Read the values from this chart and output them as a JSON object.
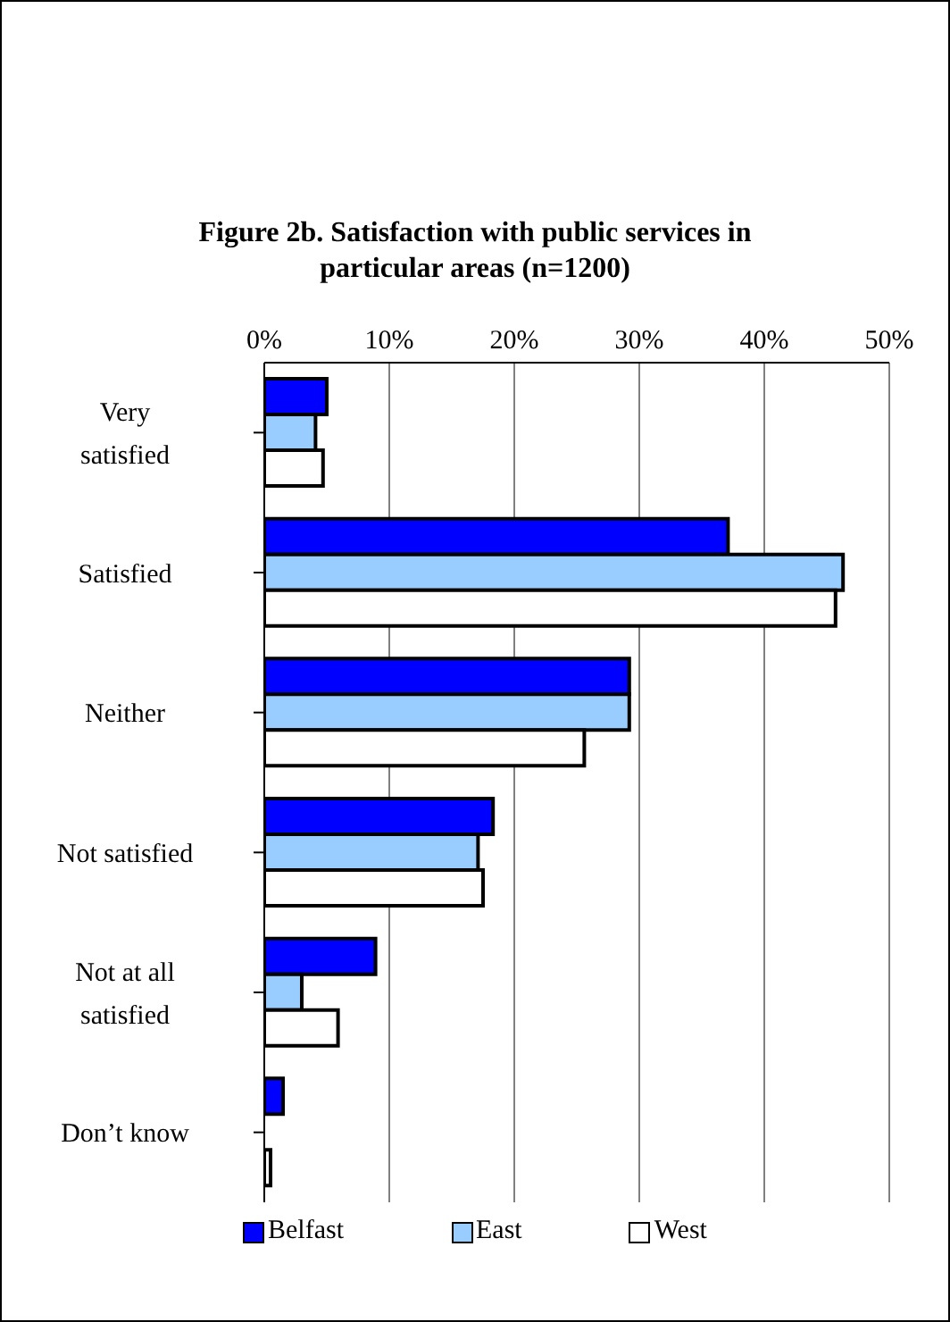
{
  "chart_data": {
    "type": "bar",
    "orientation": "horizontal",
    "title": "Figure 2b.  Satisfaction with public services in particular areas (n=1200)",
    "categories": [
      "Very satisfied",
      "Satisfied",
      "Neither",
      "Not satisfied",
      "Not at all satisfied",
      "Don’t know"
    ],
    "series": [
      {
        "name": "Belfast",
        "color": "#0000ff",
        "values": [
          5.0,
          37.1,
          29.2,
          18.3,
          8.9,
          1.5
        ]
      },
      {
        "name": "East",
        "color": "#99ccff",
        "values": [
          4.1,
          46.3,
          29.2,
          17.1,
          3.0,
          null
        ]
      },
      {
        "name": "West",
        "color": "#ffffff",
        "values": [
          4.7,
          45.7,
          25.6,
          17.5,
          5.9,
          0.5
        ]
      }
    ],
    "xlim": [
      0,
      50
    ],
    "xticks": [
      {
        "value": 0,
        "label": "0%"
      },
      {
        "value": 10,
        "label": "10%"
      },
      {
        "value": 20,
        "label": "20%"
      },
      {
        "value": 30,
        "label": "30%"
      },
      {
        "value": 40,
        "label": "40%"
      },
      {
        "value": 50,
        "label": "50%"
      }
    ],
    "grid": "x",
    "legend": "bottom"
  }
}
